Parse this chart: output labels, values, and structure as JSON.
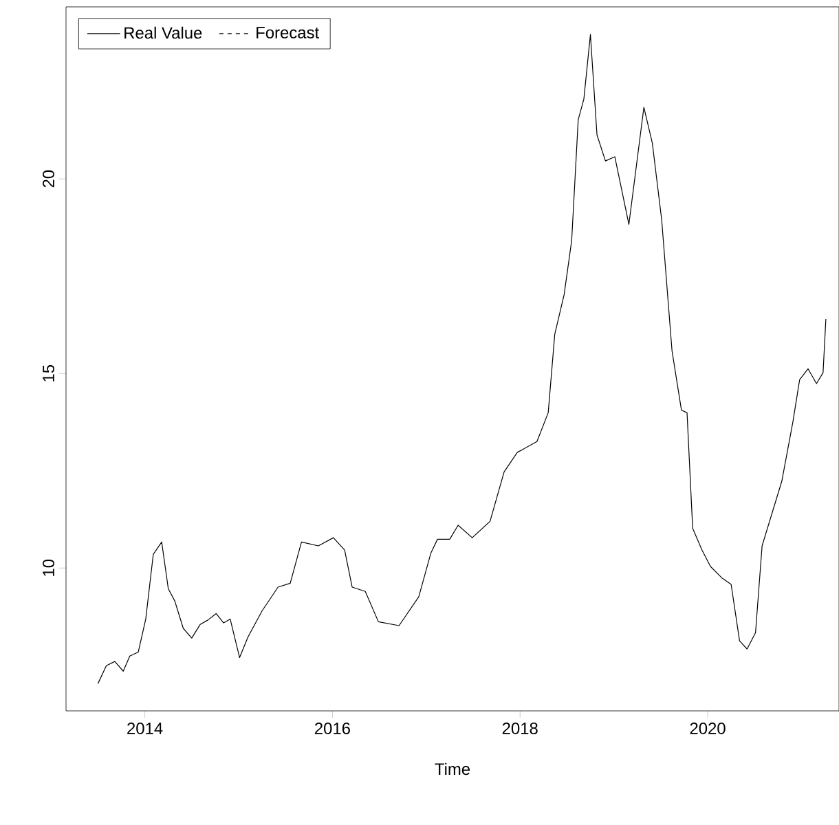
{
  "chart_data": {
    "type": "line",
    "xlabel": "Time",
    "xlim": [
      2013.16,
      2021.4
    ],
    "ylim": [
      6.33,
      24.42
    ],
    "xticks": [
      2014,
      2016,
      2018,
      2020
    ],
    "yticks": [
      10,
      15,
      20
    ],
    "legend": "top left",
    "grid": false,
    "series": [
      {
        "name": "Real Value",
        "color": "#000000",
        "line_style": "solid",
        "x": [
          2013.5,
          2013.59,
          2013.68,
          2013.77,
          2013.84,
          2013.93,
          2014.01,
          2014.09,
          2014.18,
          2014.25,
          2014.32,
          2014.41,
          2014.5,
          2014.59,
          2014.67,
          2014.76,
          2014.84,
          2014.91,
          2015.01,
          2015.1,
          2015.25,
          2015.42,
          2015.55,
          2015.67,
          2015.85,
          2016.01,
          2016.13,
          2016.21,
          2016.35,
          2016.49,
          2016.71,
          2016.92,
          2017.05,
          2017.12,
          2017.25,
          2017.34,
          2017.49,
          2017.68,
          2017.83,
          2017.97,
          2018.18,
          2018.3,
          2018.37,
          2018.47,
          2018.55,
          2018.62,
          2018.68,
          2018.75,
          2018.82,
          2018.91,
          2019.01,
          2019.16,
          2019.32,
          2019.41,
          2019.51,
          2019.62,
          2019.72,
          2019.78,
          2019.84,
          2019.94,
          2020.03,
          2020.15,
          2020.25,
          2020.34,
          2020.42,
          2020.51,
          2020.58,
          2020.7,
          2020.79,
          2020.91,
          2020.98,
          2021.07,
          2021.16,
          2021.23,
          2021.26
        ],
        "values": [
          7.03,
          7.49,
          7.6,
          7.35,
          7.74,
          7.84,
          8.69,
          10.35,
          10.67,
          9.47,
          9.15,
          8.45,
          8.2,
          8.55,
          8.66,
          8.83,
          8.59,
          8.69,
          7.7,
          8.23,
          8.9,
          9.51,
          9.61,
          10.67,
          10.57,
          10.78,
          10.46,
          9.51,
          9.4,
          8.62,
          8.52,
          9.26,
          10.39,
          10.74,
          10.74,
          11.1,
          10.78,
          11.2,
          12.47,
          12.97,
          13.25,
          13.99,
          16.01,
          17.03,
          18.41,
          21.52,
          22.05,
          23.71,
          21.13,
          20.46,
          20.57,
          18.83,
          21.84,
          20.92,
          18.94,
          15.58,
          14.06,
          13.99,
          11.02,
          10.46,
          10.04,
          9.75,
          9.58,
          8.13,
          7.92,
          8.34,
          10.57,
          11.52,
          12.23,
          13.78,
          14.84,
          15.12,
          14.74,
          15.02,
          16.4
        ]
      },
      {
        "name": "Forecast",
        "color": "#000000",
        "line_style": "dashed"
      }
    ]
  }
}
